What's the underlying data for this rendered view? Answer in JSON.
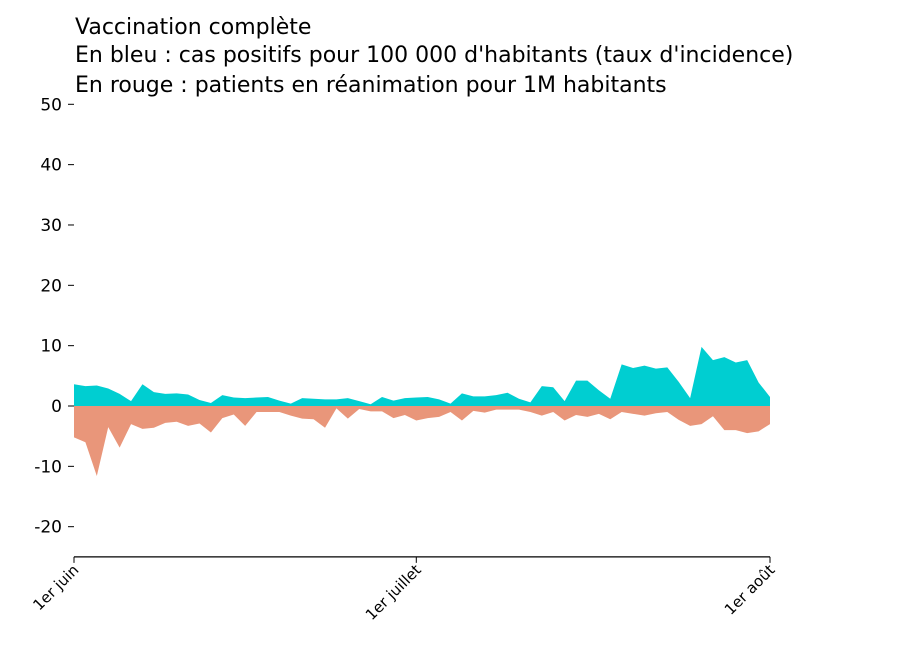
{
  "chart_data": {
    "type": "area",
    "title_lines": [
      "Vaccination complète",
      "En bleu : cas positifs pour 100 000 d'habitants (taux d'incidence)",
      "En rouge : patients en réanimation pour 1M habitants"
    ],
    "xlabel": "",
    "ylabel": "",
    "x_start": "2021-06-01",
    "x_end": "2021-08-01",
    "x_ticks": [
      {
        "date": "2021-06-01",
        "label": "1er juin"
      },
      {
        "date": "2021-07-01",
        "label": "1er juillet"
      },
      {
        "date": "2021-08-01",
        "label": "1er août"
      }
    ],
    "ylim": [
      -25,
      50
    ],
    "y_ticks": [
      -20,
      -10,
      0,
      10,
      20,
      30,
      40,
      50
    ],
    "grid": false,
    "colors": {
      "positive": "#00ced1",
      "negative": "#e9967a"
    },
    "series": [
      {
        "color": "#00ced1",
        "values": [
          3.6,
          3.3,
          3.4,
          2.9,
          2.0,
          0.8,
          3.6,
          2.3,
          2.0,
          2.1,
          1.9,
          1.0,
          0.5,
          1.8,
          1.4,
          1.3,
          1.4,
          1.5,
          0.9,
          0.4,
          1.3,
          1.2,
          1.1,
          1.1,
          1.3,
          0.8,
          0.3,
          1.5,
          0.9,
          1.3,
          1.4,
          1.5,
          1.1,
          0.4,
          2.1,
          1.6,
          1.6,
          1.8,
          2.2,
          1.2,
          0.6,
          3.3,
          3.1,
          0.8,
          4.2,
          4.2,
          2.6,
          1.2,
          6.9,
          6.3,
          6.7,
          6.2,
          6.4,
          4.0,
          1.3,
          9.8,
          7.6,
          8.1,
          7.2,
          7.6,
          3.9,
          1.5
        ]
      },
      {
        "color": "#e9967a",
        "values": [
          -5.2,
          -6.0,
          -11.6,
          -3.5,
          -6.9,
          -3.0,
          -3.8,
          -3.6,
          -2.8,
          -2.6,
          -3.3,
          -2.9,
          -4.4,
          -2.0,
          -1.4,
          -3.3,
          -1.0,
          -1.0,
          -1.0,
          -1.6,
          -2.1,
          -2.2,
          -3.6,
          -0.4,
          -2.1,
          -0.5,
          -0.9,
          -0.9,
          -2.0,
          -1.5,
          -2.4,
          -2.0,
          -1.8,
          -1.0,
          -2.4,
          -0.8,
          -1.1,
          -0.6,
          -0.6,
          -0.6,
          -1.0,
          -1.6,
          -1.0,
          -2.4,
          -1.5,
          -1.8,
          -1.3,
          -2.2,
          -1.0,
          -1.3,
          -1.6,
          -1.2,
          -1.0,
          -2.3,
          -3.3,
          -3.0,
          -1.7,
          -4.0,
          -4.0,
          -4.5,
          -4.2,
          -3.0
        ]
      }
    ]
  }
}
